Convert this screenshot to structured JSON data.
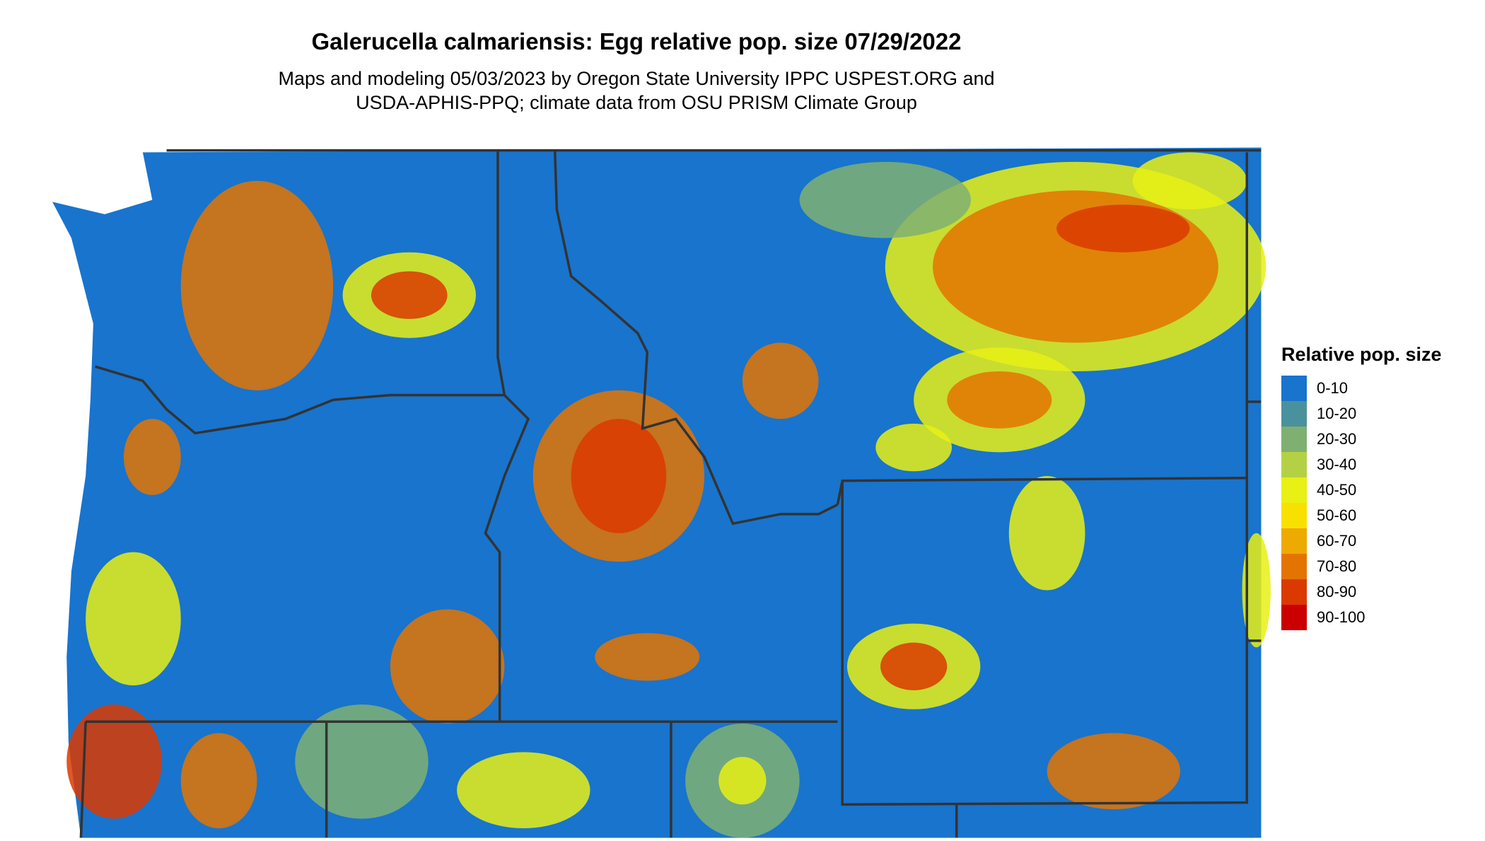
{
  "title": "Galerucella calmariensis: Egg relative pop. size 07/29/2022",
  "subtitle_lines": [
    "Maps and modeling 05/03/2023 by Oregon State University IPPC USPEST.ORG and",
    "USDA-APHIS-PPQ; climate data from OSU PRISM Climate Group"
  ],
  "legend": {
    "title": "Relative pop. size",
    "items": [
      {
        "label": "0-10",
        "color": "#1874CD"
      },
      {
        "label": "10-20",
        "color": "#4A919E"
      },
      {
        "label": "20-30",
        "color": "#7FB072"
      },
      {
        "label": "30-40",
        "color": "#B4D145"
      },
      {
        "label": "40-50",
        "color": "#E8F014"
      },
      {
        "label": "50-60",
        "color": "#F8E000"
      },
      {
        "label": "60-70",
        "color": "#EEAA00"
      },
      {
        "label": "70-80",
        "color": "#E47400"
      },
      {
        "label": "80-90",
        "color": "#DA3A00"
      },
      {
        "label": "90-100",
        "color": "#CC0000"
      }
    ]
  },
  "border_color": "#333333"
}
